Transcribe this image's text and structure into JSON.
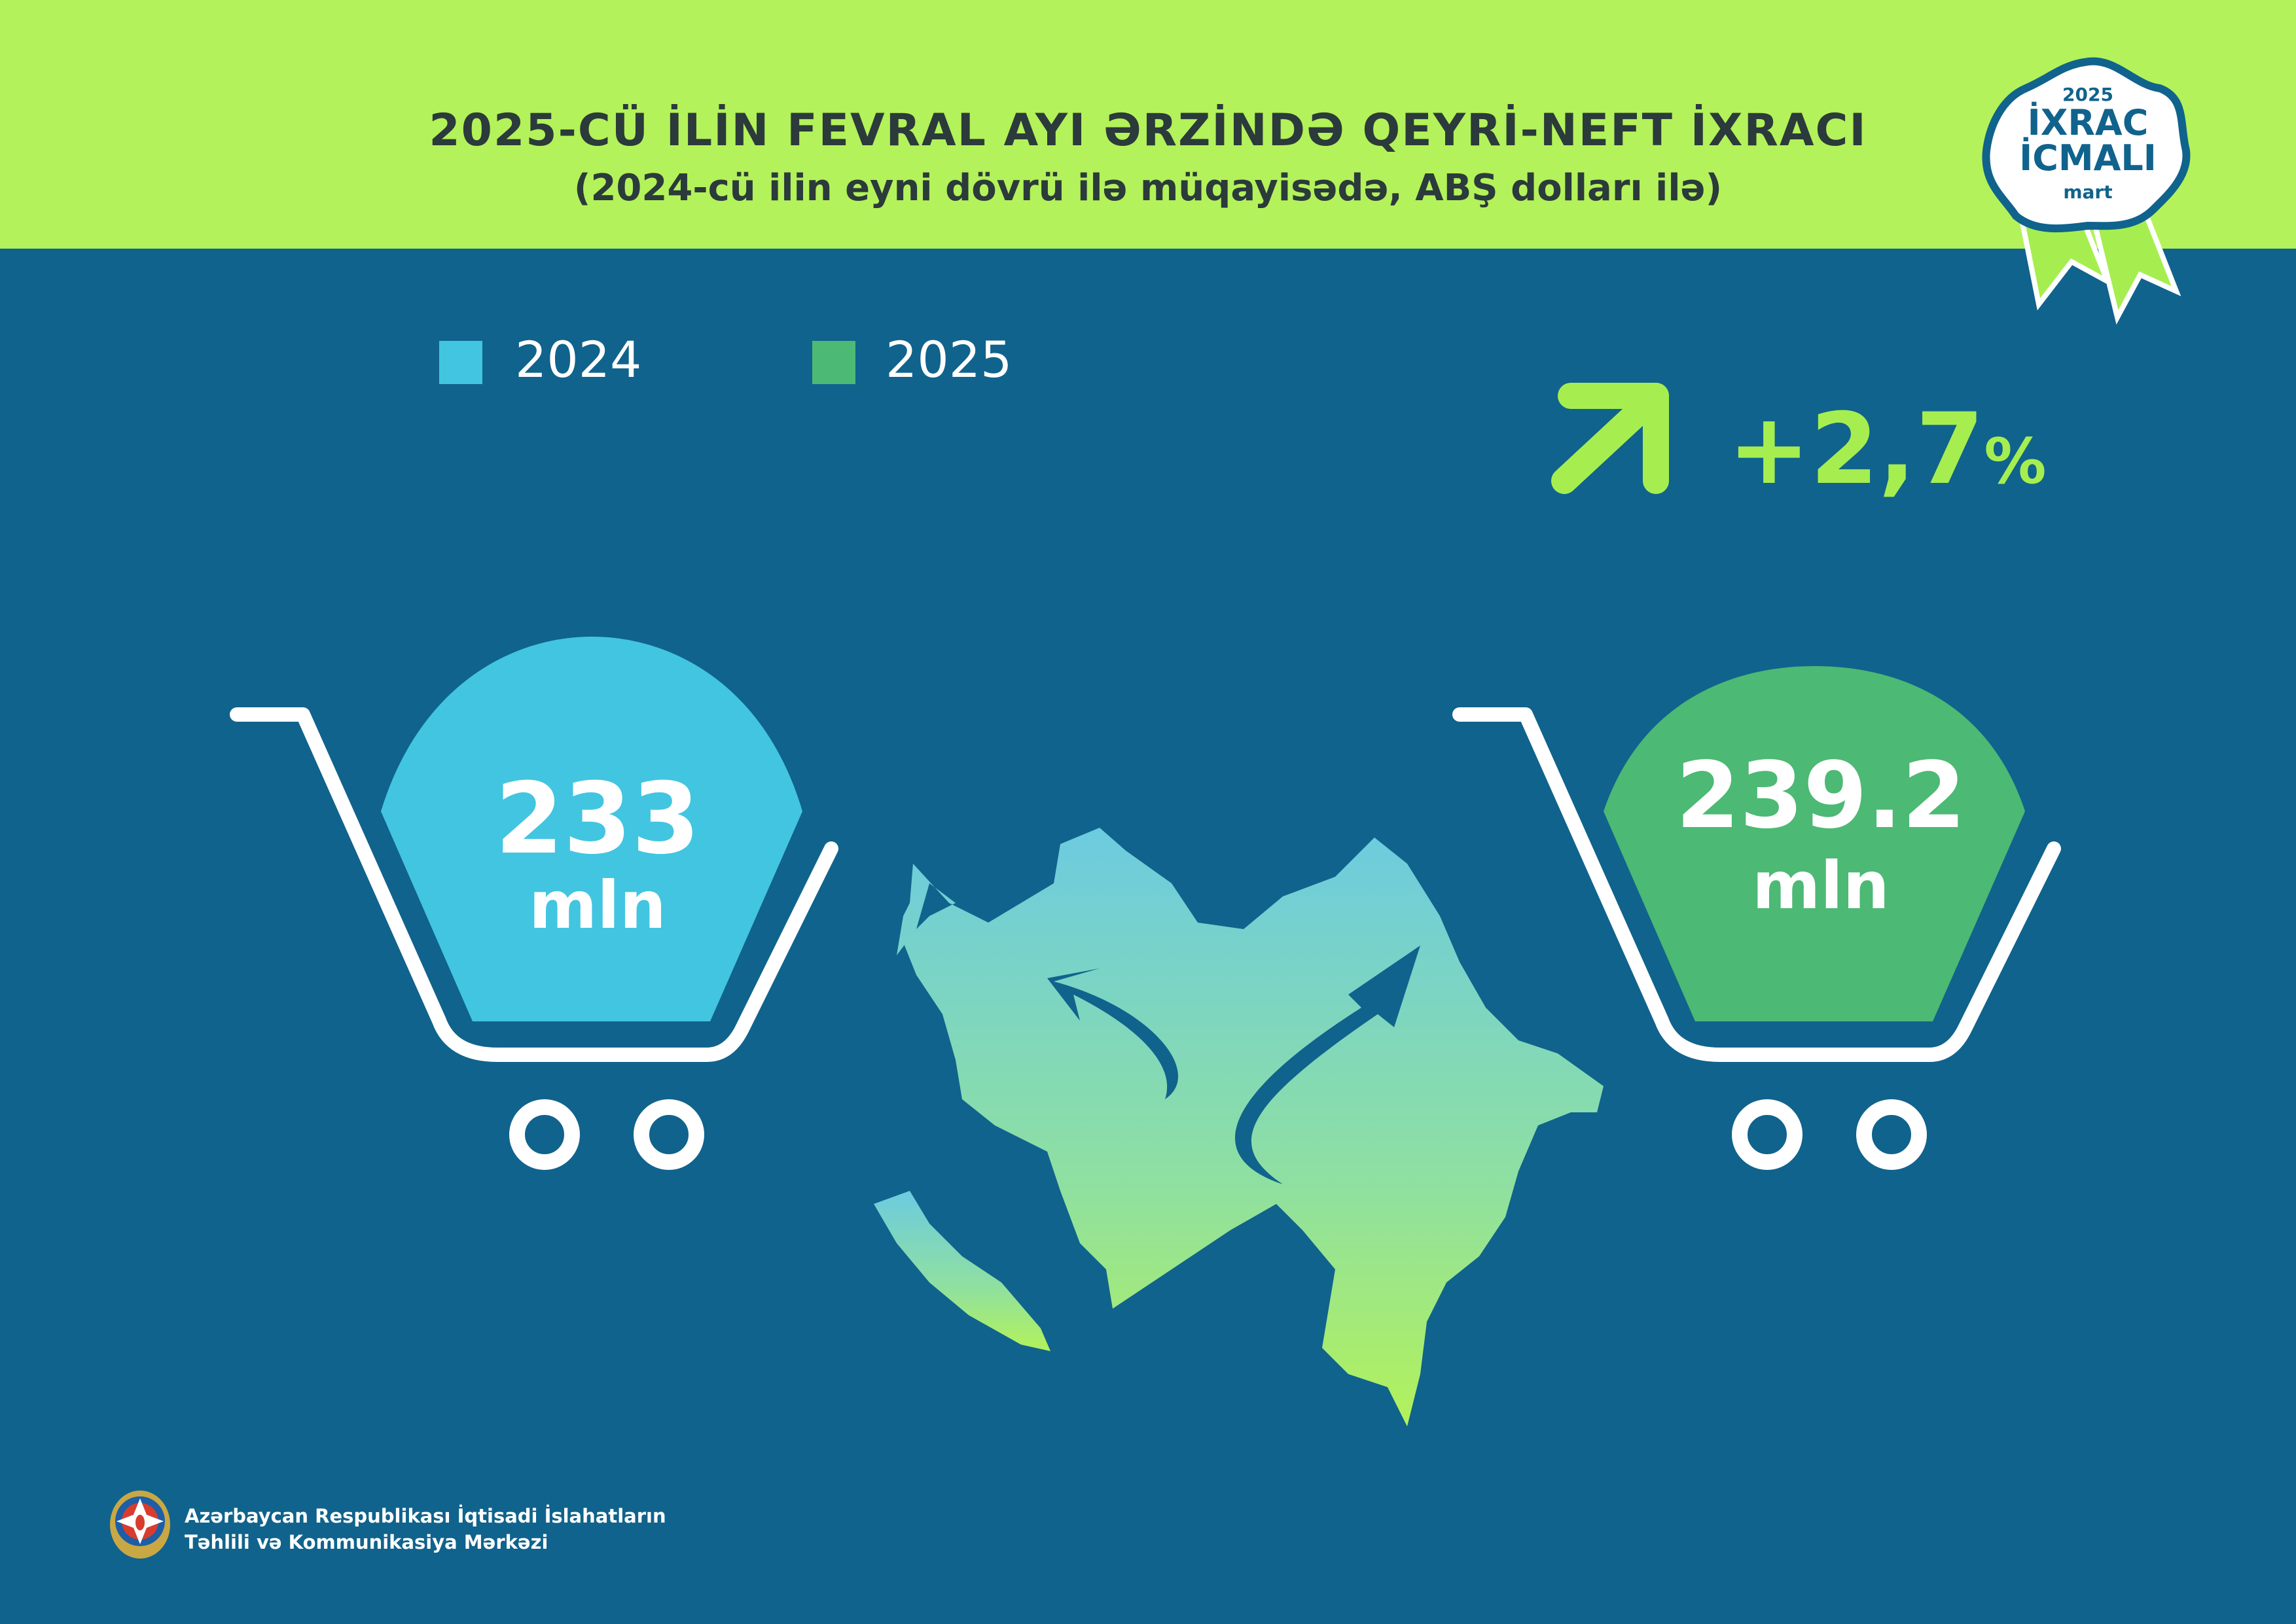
{
  "header": {
    "title": "2025-CÜ İLİN FEVRAL AYI ƏRZİNDƏ QEYRİ-NEFT İXRACI",
    "subtitle": "(2024-cü ilin eyni dövrü ilə müqayisədə, ABŞ dolları ilə)"
  },
  "badge": {
    "year": "2025",
    "line1": "İXRAC",
    "line2": "İCMALI",
    "month": "mart"
  },
  "legend": [
    {
      "label": "2024",
      "color": "#42c5e0"
    },
    {
      "label": "2025",
      "color": "#4cb974"
    }
  ],
  "change": {
    "value": "+2,7",
    "unit": "%",
    "icon": "arrow-up-right-icon",
    "color": "#a6ee50"
  },
  "carts": [
    {
      "year": "2024",
      "value": "233",
      "unit": "mln",
      "color": "#42c5e0"
    },
    {
      "year": "2025",
      "value": "239.2",
      "unit": "mln",
      "color": "#4cb974"
    }
  ],
  "footer": {
    "line1": "Azərbaycan Respublikası İqtisadi İslahatların",
    "line2": "Təhlili və Kommunikasiya Mərkəzi"
  }
}
